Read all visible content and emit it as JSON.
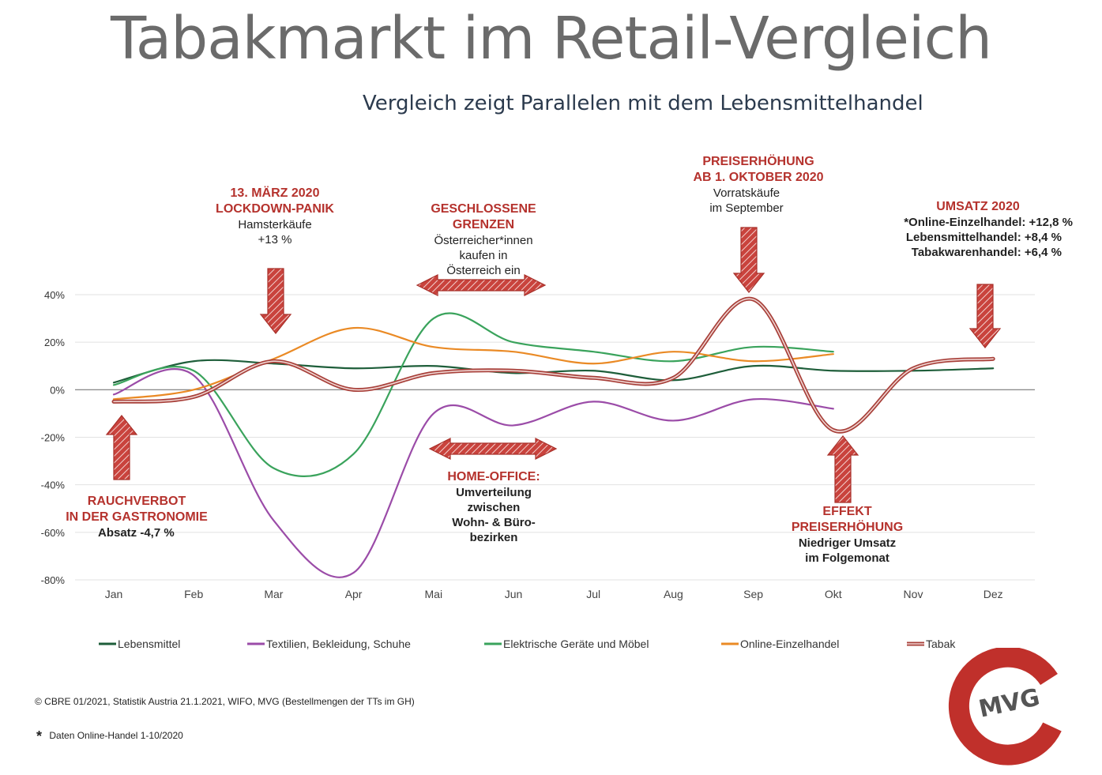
{
  "title": "Tabakmarkt im Retail-Vergleich",
  "subtitle": "Vergleich zeigt Parallelen mit dem Lebensmittelhandel",
  "chart_data": {
    "type": "line",
    "categories": [
      "Jan",
      "Feb",
      "Mar",
      "Apr",
      "Mai",
      "Jun",
      "Jul",
      "Aug",
      "Sep",
      "Okt",
      "Nov",
      "Dez"
    ],
    "y_ticks": [
      "40%",
      "20%",
      "0%",
      "-20%",
      "-40%",
      "-60%",
      "-80%"
    ],
    "ylim": [
      -80,
      40
    ],
    "grid": true,
    "legend_position": "bottom",
    "series": [
      {
        "name": "Lebensmittel",
        "color": "#1e5e3a",
        "values": [
          3,
          12,
          11,
          9,
          10,
          7,
          8,
          4,
          10,
          8,
          8,
          9
        ]
      },
      {
        "name": "Textilien, Bekleidung, Schuhe",
        "color": "#9b4ca8",
        "values": [
          -2,
          6,
          -55,
          -77,
          -10,
          -15,
          -5,
          -13,
          -4,
          -8,
          null,
          null
        ]
      },
      {
        "name": "Elektrische Geräte und Möbel",
        "color": "#3aa35c",
        "values": [
          2,
          8,
          -33,
          -27,
          30,
          20,
          16,
          12,
          18,
          16,
          null,
          null
        ]
      },
      {
        "name": "Online-Einzelhandel",
        "color": "#ea8a25",
        "values": [
          -4,
          0,
          13,
          26,
          18,
          16,
          11,
          16,
          12,
          15,
          null,
          null
        ]
      },
      {
        "name": "Tabak",
        "color": "#a8403a",
        "values": [
          -5,
          -3,
          12,
          0,
          7,
          8,
          5,
          5,
          38,
          -17,
          9,
          13
        ]
      }
    ]
  },
  "annotations": {
    "rauchverbot": {
      "h1": "RAUCHVERBOT",
      "h2": "IN DER GASTRONOMIE",
      "t1": "Absatz -4,7 %"
    },
    "lockdown": {
      "h1": "13. MÄRZ  2020",
      "h2": "LOCKDOWN-PANIK",
      "t1": "Hamsterkäufe",
      "t2": "+13 %"
    },
    "grenzen": {
      "h1": "GESCHLOSSENE",
      "h2": "GRENZEN",
      "t1": "Österreicher*innen",
      "t2": "kaufen in",
      "t3": "Österreich ein"
    },
    "homeoffice": {
      "h1": "HOME-OFFICE:",
      "t1": "Umverteilung",
      "t2": "zwischen",
      "t3": "Wohn- &  Büro-",
      "t4": "bezirken"
    },
    "preis": {
      "h1": "PREISERHÖHUNG",
      "h2": "AB 1. OKTOBER 2020",
      "t1": "Vorratskäufe",
      "t2": "im September"
    },
    "effekt": {
      "h1": "EFFEKT",
      "h2": "PREISERHÖHUNG",
      "t1": "Niedriger Umsatz",
      "t2": "im Folgemonat"
    },
    "umsatz": {
      "h1": "UMSATZ 2020",
      "t1": "*Online-Einzelhandel: +12,8 %",
      "t2": "Lebensmittelhandel: +8,4 %",
      "t3": "Tabakwarenhandel: +6,4 %"
    }
  },
  "footer": {
    "source": "© CBRE 01/2021, Statistik Austria 21.1.2021, WIFO, MVG (Bestellmengen der TTs im GH)",
    "note_star": "*",
    "note": "Daten Online-Handel 1-10/2020"
  },
  "logo": {
    "text": "MVG",
    "color": "#c0302b"
  }
}
